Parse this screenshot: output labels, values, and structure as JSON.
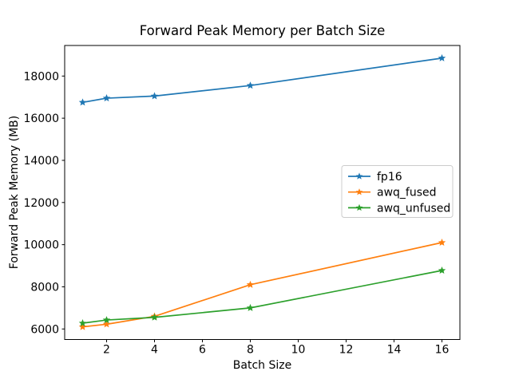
{
  "chart_data": {
    "type": "line",
    "title": "Forward Peak Memory per Batch Size",
    "xlabel": "Batch Size",
    "ylabel": "Forward Peak Memory (MB)",
    "x": [
      1,
      2,
      4,
      8,
      16
    ],
    "series": [
      {
        "name": "fp16",
        "color": "#1f77b4",
        "marker": "star",
        "values": [
          16750,
          16950,
          17050,
          17550,
          18850
        ]
      },
      {
        "name": "awq_fused",
        "color": "#ff7f0e",
        "marker": "star",
        "values": [
          6100,
          6225,
          6600,
          8100,
          10100
        ]
      },
      {
        "name": "awq_unfused",
        "color": "#2ca02c",
        "marker": "star",
        "values": [
          6275,
          6425,
          6550,
          7000,
          8775
        ]
      }
    ],
    "x_ticks": [
      2,
      4,
      6,
      8,
      10,
      12,
      14,
      16
    ],
    "x_tick_labels": [
      "2",
      "4",
      "6",
      "8",
      "10",
      "12",
      "14",
      "16"
    ],
    "y_ticks": [
      6000,
      8000,
      10000,
      12000,
      14000,
      16000,
      18000
    ],
    "y_tick_labels": [
      "6000",
      "8000",
      "10000",
      "12000",
      "14000",
      "16000",
      "18000"
    ],
    "xlim": [
      0.25,
      16.75
    ],
    "ylim": [
      5500,
      19450
    ],
    "grid": false,
    "legend_position": "center right",
    "background": "#ffffff",
    "axis_color": "#000000",
    "legend_border_color": "#cccccc"
  }
}
